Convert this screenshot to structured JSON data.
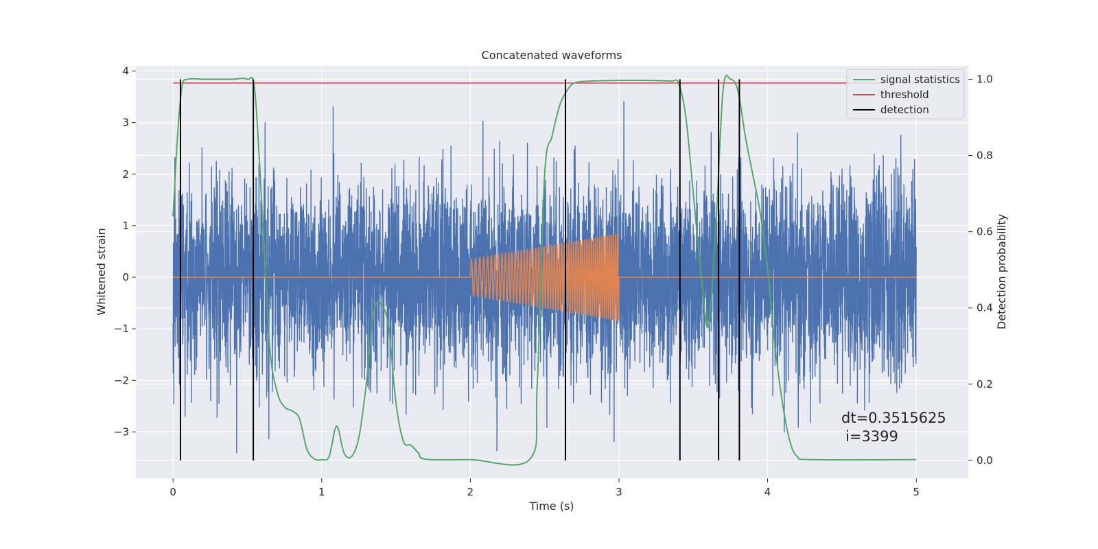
{
  "chart_data": {
    "type": "line",
    "title": "Concatenated waveforms",
    "xlabel": "Time (s)",
    "ylabel": "Whitened strain",
    "ylabel_right": "Detection probability",
    "xlim": [
      -0.25,
      5.35
    ],
    "ylim_left": [
      -3.9,
      4.1
    ],
    "ylim_right": [
      -0.047,
      1.035
    ],
    "x_ticks": [
      0,
      1,
      2,
      3,
      4,
      5
    ],
    "x_tick_labels": [
      "0",
      "1",
      "2",
      "3",
      "4",
      "5"
    ],
    "y_left_ticks": [
      -3,
      -2,
      -1,
      0,
      1,
      2,
      3,
      4
    ],
    "y_left_tick_labels": [
      "−3",
      "−2",
      "−1",
      "0",
      "1",
      "2",
      "3",
      "4"
    ],
    "y_right_ticks": [
      0.0,
      0.2,
      0.4,
      0.6,
      0.8,
      1.0
    ],
    "y_right_tick_labels": [
      "0.0",
      "0.2",
      "0.4",
      "0.6",
      "0.8",
      "1.0"
    ],
    "grid": true,
    "legend_position": "top-right",
    "legend": [
      {
        "label": "signal statistics",
        "color": "#55a868"
      },
      {
        "label": "threshold",
        "color": "#c44e52"
      },
      {
        "label": "detection",
        "color": "#000000"
      }
    ],
    "annotation": {
      "line1": "dt=0.3515625",
      "line2": "i=3399"
    },
    "series": [
      {
        "kind": "noise",
        "axis": "left",
        "color": "#4c72b0",
        "x_range": [
          0,
          5
        ],
        "y_approx_range": [
          -3.6,
          3.8
        ]
      },
      {
        "kind": "chirp",
        "axis": "left",
        "color": "#dd8452",
        "flat_value": 0,
        "chirp_x_range": [
          2,
          3
        ],
        "amplitude_start": 0.35,
        "amplitude_end": 0.85,
        "x_range": [
          0,
          5
        ]
      },
      {
        "name": "signal statistics",
        "axis": "right",
        "color": "#55a868",
        "x": [
          0.0,
          0.03,
          0.06,
          0.1,
          0.2,
          0.3,
          0.4,
          0.5,
          0.55,
          0.6,
          0.65,
          0.7,
          0.75,
          0.8,
          0.85,
          0.9,
          0.95,
          1.0,
          1.05,
          1.1,
          1.15,
          1.2,
          1.25,
          1.3,
          1.35,
          1.4,
          1.45,
          1.5,
          1.55,
          1.6,
          1.65,
          1.7,
          2.0,
          2.4,
          2.45,
          2.5,
          2.55,
          2.6,
          2.65,
          2.7,
          2.8,
          3.0,
          3.2,
          3.35,
          3.4,
          3.45,
          3.5,
          3.55,
          3.6,
          3.65,
          3.7,
          3.75,
          3.8,
          3.85,
          3.9,
          3.95,
          4.0,
          4.05,
          4.1,
          4.15,
          4.2,
          4.3,
          5.0
        ],
        "y": [
          0.64,
          0.85,
          0.98,
          1.0,
          1.0,
          1.0,
          1.0,
          1.0,
          0.97,
          0.65,
          0.3,
          0.18,
          0.14,
          0.13,
          0.11,
          0.03,
          0.004,
          0.002,
          0.01,
          0.09,
          0.02,
          0.01,
          0.06,
          0.2,
          0.39,
          0.41,
          0.35,
          0.15,
          0.05,
          0.04,
          0.02,
          0.003,
          0.002,
          0.003,
          0.2,
          0.75,
          0.85,
          0.93,
          0.97,
          0.99,
          0.995,
          0.997,
          0.997,
          0.995,
          0.99,
          0.9,
          0.7,
          0.5,
          0.35,
          0.6,
          0.97,
          1.0,
          0.97,
          0.85,
          0.75,
          0.65,
          0.5,
          0.3,
          0.15,
          0.05,
          0.01,
          0.002,
          0.002
        ]
      },
      {
        "name": "threshold",
        "axis": "right",
        "color": "#c44e52",
        "x": [
          0,
          5
        ],
        "y": [
          0.99,
          0.99
        ]
      },
      {
        "name": "detection",
        "axis": "right",
        "color": "#000000",
        "x": [
          0.05,
          0.54,
          2.64,
          3.41,
          3.67,
          3.81
        ],
        "y_range": [
          0,
          1
        ]
      }
    ]
  }
}
